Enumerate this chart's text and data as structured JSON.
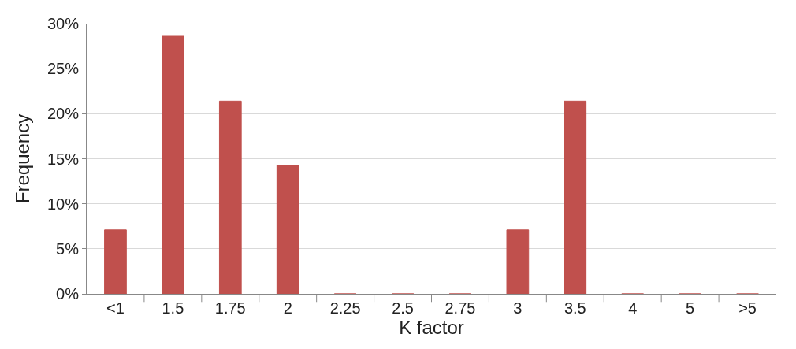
{
  "chart_data": {
    "type": "bar",
    "xlabel": "K factor",
    "ylabel": "Frequency",
    "categories": [
      "<1",
      "1.5",
      "1.75",
      "2",
      "2.25",
      "2.5",
      "2.75",
      "3",
      "3.5",
      "4",
      "5",
      ">5"
    ],
    "values": [
      7.1,
      28.6,
      21.4,
      14.3,
      0,
      0,
      0,
      7.1,
      21.4,
      0,
      0,
      0
    ],
    "color": "#c0504d",
    "ylim": [
      0,
      30
    ],
    "yticks": [
      {
        "value": 0,
        "label": "0%"
      },
      {
        "value": 5,
        "label": "5%"
      },
      {
        "value": 10,
        "label": "10%"
      },
      {
        "value": 15,
        "label": "15%"
      },
      {
        "value": 20,
        "label": "20%"
      },
      {
        "value": 25,
        "label": "25%"
      },
      {
        "value": 30,
        "label": "30%"
      }
    ],
    "grid": "y"
  }
}
